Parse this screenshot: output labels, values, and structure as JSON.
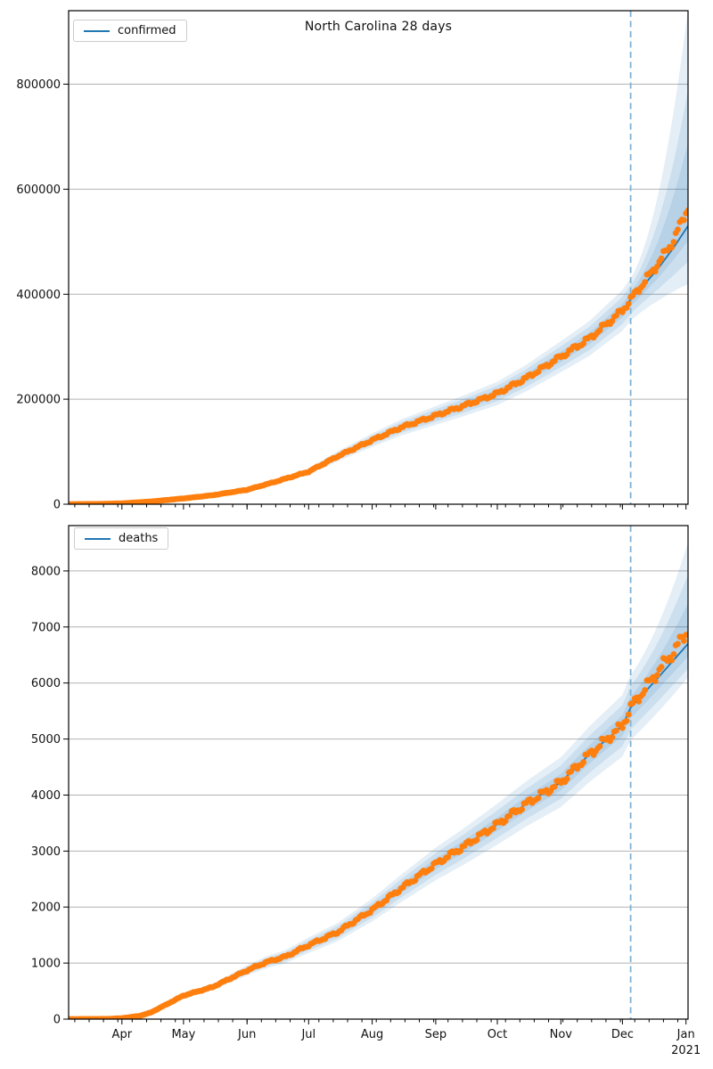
{
  "figure": {
    "background": "#ffffff",
    "forecast_start_date": "2020-12-05",
    "forecast_horizon_days": 28
  },
  "colors": {
    "actual_dots": "#ff7f0e",
    "model_line": "#1f77b4",
    "band_base": "#1f77b4",
    "band_alpha": 0.12,
    "forecast_vline": "#7fb2d6",
    "grid": "#b2b2b2",
    "spine": "#000000",
    "tick_text": "#111111"
  },
  "chart_data": [
    {
      "type": "line",
      "title": "North Carolina 28 days",
      "legend_label": "confirmed",
      "legend_position": "upper left",
      "grid": "horizontal",
      "x_range": [
        "2020-03-06",
        "2021-01-02"
      ],
      "forecast_start": "2020-12-05",
      "y_max": 940000,
      "y_tick_labels": [
        "0",
        "200000",
        "400000",
        "600000",
        "800000"
      ],
      "x_tick_dates": [
        "2020-04-01",
        "2020-05-01",
        "2020-06-01",
        "2020-07-01",
        "2020-08-01",
        "2020-09-01",
        "2020-10-01",
        "2020-11-01",
        "2020-12-01",
        "2021-01-01"
      ],
      "x_tick_labels": [
        "Apr",
        "May",
        "Jun",
        "Jul",
        "Aug",
        "Sep",
        "Oct",
        "Nov",
        "Dec",
        "Jan"
      ],
      "show_x_labels": false,
      "series": [
        {
          "name": "confirmed-actual",
          "style": "scatter-dots",
          "points": [
            [
              "2020-03-06",
              0
            ],
            [
              "2020-03-20",
              400
            ],
            [
              "2020-04-01",
              1600
            ],
            [
              "2020-04-15",
              5100
            ],
            [
              "2020-05-01",
              11000
            ],
            [
              "2020-05-15",
              17000
            ],
            [
              "2020-06-01",
              27500
            ],
            [
              "2020-06-15",
              43000
            ],
            [
              "2020-07-01",
              62000
            ],
            [
              "2020-07-15",
              91000
            ],
            [
              "2020-08-01",
              122000
            ],
            [
              "2020-08-15",
              146000
            ],
            [
              "2020-09-01",
              169000
            ],
            [
              "2020-09-15",
              188000
            ],
            [
              "2020-10-01",
              211000
            ],
            [
              "2020-10-15",
              240000
            ],
            [
              "2020-11-01",
              281000
            ],
            [
              "2020-11-15",
              316000
            ],
            [
              "2020-12-01",
              369000
            ],
            [
              "2020-12-05",
              390000
            ],
            [
              "2020-12-12",
              425000
            ],
            [
              "2020-12-19",
              462000
            ],
            [
              "2020-12-26",
              503000
            ],
            [
              "2021-01-02",
              566000
            ]
          ]
        },
        {
          "name": "confirmed-model",
          "style": "line",
          "points": [
            [
              "2020-03-06",
              0
            ],
            [
              "2020-03-20",
              400
            ],
            [
              "2020-04-01",
              1600
            ],
            [
              "2020-04-15",
              5100
            ],
            [
              "2020-05-01",
              11000
            ],
            [
              "2020-05-15",
              17000
            ],
            [
              "2020-06-01",
              27500
            ],
            [
              "2020-06-15",
              43000
            ],
            [
              "2020-07-01",
              62000
            ],
            [
              "2020-07-15",
              91000
            ],
            [
              "2020-08-01",
              122000
            ],
            [
              "2020-08-15",
              146000
            ],
            [
              "2020-09-01",
              169000
            ],
            [
              "2020-09-15",
              188000
            ],
            [
              "2020-10-01",
              211000
            ],
            [
              "2020-10-15",
              240000
            ],
            [
              "2020-11-01",
              281000
            ],
            [
              "2020-11-15",
              316000
            ],
            [
              "2020-12-01",
              369000
            ],
            [
              "2020-12-05",
              390000
            ],
            [
              "2020-12-12",
              420000
            ],
            [
              "2020-12-19",
              452000
            ],
            [
              "2020-12-26",
              489000
            ],
            [
              "2021-01-02",
              530000
            ]
          ]
        }
      ],
      "uncertainty_bands": [
        {
          "level": "inner",
          "insample_frac": 0.035,
          "end_upper_factor": 1.3,
          "end_lower_factor": 0.945
        },
        {
          "level": "middle",
          "insample_frac": 0.07,
          "end_upper_factor": 1.49,
          "end_lower_factor": 0.87
        },
        {
          "level": "outer",
          "insample_frac": 0.105,
          "end_upper_factor": 1.78,
          "end_lower_factor": 0.79
        }
      ]
    },
    {
      "type": "line",
      "title": "",
      "legend_label": "deaths",
      "legend_position": "upper left",
      "grid": "horizontal",
      "x_range": [
        "2020-03-06",
        "2021-01-02"
      ],
      "forecast_start": "2020-12-05",
      "y_max": 8810,
      "y_tick_labels": [
        "0",
        "1000",
        "2000",
        "3000",
        "4000",
        "5000",
        "6000",
        "7000",
        "8000"
      ],
      "x_tick_dates": [
        "2020-04-01",
        "2020-05-01",
        "2020-06-01",
        "2020-07-01",
        "2020-08-01",
        "2020-09-01",
        "2020-10-01",
        "2020-11-01",
        "2020-12-01",
        "2021-01-01"
      ],
      "x_tick_labels": [
        "Apr",
        "May",
        "Jun",
        "Jul",
        "Aug",
        "Sep",
        "Oct",
        "Nov",
        "Dec",
        "Jan"
      ],
      "year_label": "2021",
      "show_x_labels": true,
      "series": [
        {
          "name": "deaths-actual",
          "style": "scatter-dots",
          "points": [
            [
              "2020-03-06",
              0
            ],
            [
              "2020-03-25",
              3
            ],
            [
              "2020-04-01",
              16
            ],
            [
              "2020-04-10",
              60
            ],
            [
              "2020-04-15",
              117
            ],
            [
              "2020-05-01",
              420
            ],
            [
              "2020-05-15",
              570
            ],
            [
              "2020-06-01",
              870
            ],
            [
              "2020-06-10",
              1010
            ],
            [
              "2020-06-20",
              1120
            ],
            [
              "2020-07-01",
              1320
            ],
            [
              "2020-07-15",
              1550
            ],
            [
              "2020-08-01",
              1950
            ],
            [
              "2020-08-15",
              2330
            ],
            [
              "2020-09-01",
              2770
            ],
            [
              "2020-09-15",
              3090
            ],
            [
              "2020-10-01",
              3480
            ],
            [
              "2020-10-15",
              3840
            ],
            [
              "2020-11-01",
              4230
            ],
            [
              "2020-11-15",
              4730
            ],
            [
              "2020-12-01",
              5240
            ],
            [
              "2020-12-05",
              5560
            ],
            [
              "2020-12-12",
              5900
            ],
            [
              "2020-12-19",
              6240
            ],
            [
              "2020-12-26",
              6560
            ],
            [
              "2021-01-02",
              6950
            ]
          ]
        },
        {
          "name": "deaths-model",
          "style": "line",
          "points": [
            [
              "2020-03-06",
              0
            ],
            [
              "2020-03-25",
              3
            ],
            [
              "2020-04-01",
              16
            ],
            [
              "2020-04-10",
              60
            ],
            [
              "2020-04-15",
              117
            ],
            [
              "2020-05-01",
              420
            ],
            [
              "2020-05-15",
              570
            ],
            [
              "2020-06-01",
              870
            ],
            [
              "2020-06-10",
              1010
            ],
            [
              "2020-06-20",
              1120
            ],
            [
              "2020-07-01",
              1320
            ],
            [
              "2020-07-15",
              1550
            ],
            [
              "2020-08-01",
              1950
            ],
            [
              "2020-08-15",
              2330
            ],
            [
              "2020-09-01",
              2770
            ],
            [
              "2020-09-15",
              3090
            ],
            [
              "2020-10-01",
              3480
            ],
            [
              "2020-10-15",
              3840
            ],
            [
              "2020-11-01",
              4230
            ],
            [
              "2020-11-15",
              4730
            ],
            [
              "2020-12-01",
              5240
            ],
            [
              "2020-12-05",
              5560
            ],
            [
              "2020-12-12",
              5840
            ],
            [
              "2020-12-19",
              6120
            ],
            [
              "2020-12-26",
              6410
            ],
            [
              "2021-01-02",
              6700
            ]
          ]
        }
      ],
      "uncertainty_bands": [
        {
          "level": "inner",
          "insample_frac": 0.035,
          "end_upper_factor": 1.108,
          "end_lower_factor": 0.966
        },
        {
          "level": "middle",
          "insample_frac": 0.07,
          "end_upper_factor": 1.184,
          "end_lower_factor": 0.934
        },
        {
          "level": "outer",
          "insample_frac": 0.105,
          "end_upper_factor": 1.27,
          "end_lower_factor": 0.91
        }
      ]
    }
  ]
}
